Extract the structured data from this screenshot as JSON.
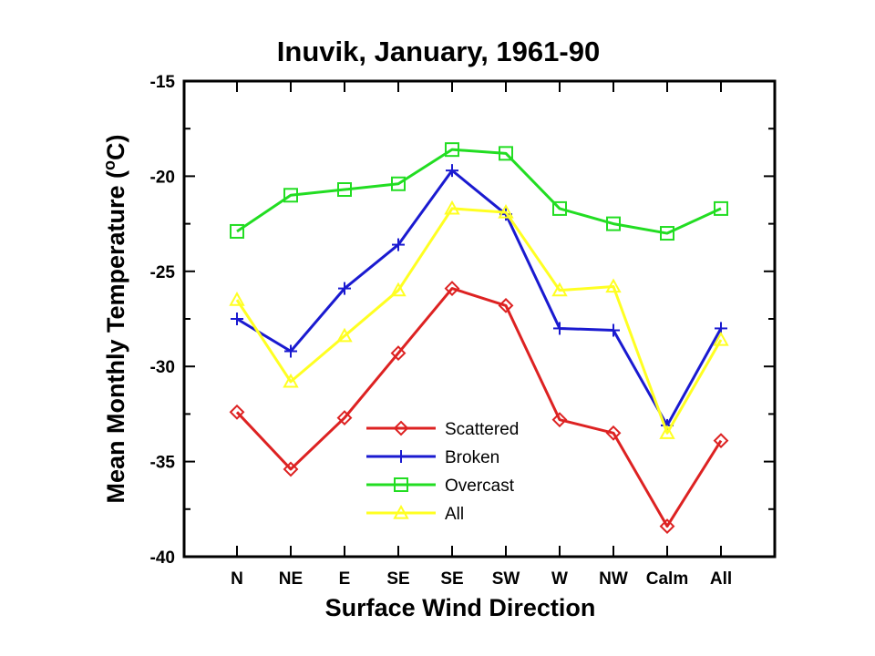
{
  "chart_data": {
    "type": "line",
    "title": "Inuvik, January, 1961-90",
    "xlabel": "Surface Wind Direction",
    "ylabel": "Mean Monthly Temperature (",
    "ylabel_sup": "o",
    "ylabel_tail": "C)",
    "categories": [
      "N",
      "NE",
      "E",
      "SE",
      "SE",
      "SW",
      "W",
      "NW",
      "Calm",
      "All"
    ],
    "ylim": [
      -40,
      -15
    ],
    "yticks": [
      -15,
      -20,
      -25,
      -30,
      -35,
      -40
    ],
    "grid": false,
    "legend_position": "bottom-center",
    "series": [
      {
        "name": "Scattered",
        "color": "#dd2222",
        "marker": "diamond",
        "values": [
          -32.4,
          -35.4,
          -32.7,
          -29.3,
          -25.9,
          -26.8,
          -32.8,
          -33.5,
          -38.4,
          -33.9
        ]
      },
      {
        "name": "Broken",
        "color": "#1a1ad0",
        "marker": "plus",
        "values": [
          -27.5,
          -29.2,
          -25.9,
          -23.6,
          -19.7,
          -22.0,
          -28.0,
          -28.1,
          -33.1,
          -28.0
        ]
      },
      {
        "name": "Overcast",
        "color": "#22dd22",
        "marker": "square",
        "values": [
          -22.9,
          -21.0,
          -20.7,
          -20.4,
          -18.6,
          -18.8,
          -21.7,
          -22.5,
          -23.0,
          -21.7
        ]
      },
      {
        "name": "All",
        "color": "#ffff22",
        "marker": "triangle",
        "values": [
          -26.5,
          -30.8,
          -28.4,
          -26.0,
          -21.7,
          -21.9,
          -26.0,
          -25.8,
          -33.5,
          -28.6
        ]
      }
    ]
  }
}
